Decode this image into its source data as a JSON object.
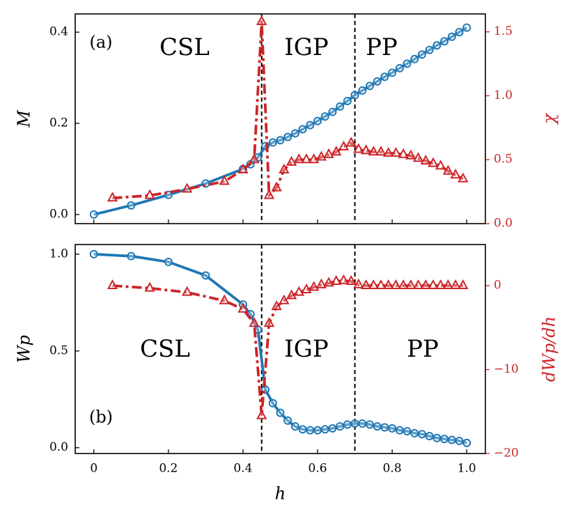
{
  "chart_data": [
    {
      "type": "line",
      "ylabel": "M",
      "y2label": "χ",
      "xlim": [
        -0.05,
        1.05
      ],
      "xticks": [
        0,
        0.2,
        0.4,
        0.6,
        0.8,
        1
      ],
      "ylim": [
        -0.02,
        0.44
      ],
      "yticks": [
        {
          "value": 0,
          "label": "0.0"
        },
        0.2,
        0.4
      ],
      "y2lim": [
        0,
        1.64
      ],
      "y2ticks": [
        {
          "value": 0,
          "label": "0.0"
        },
        0.5,
        {
          "value": 1,
          "label": "1.0"
        },
        1.5
      ],
      "y2color": "#cc2529",
      "vlines": [
        0.45,
        0.7
      ],
      "annotations": [
        "(a)",
        "CSL",
        "IGP",
        "PP"
      ],
      "series": [
        {
          "color": "#1f77b4",
          "marker": "circle",
          "linestyle": "solid",
          "x": [
            0,
            0.1,
            0.2,
            0.3,
            0.4,
            0.42,
            0.44,
            0.46,
            0.48,
            0.5,
            0.52,
            0.54,
            0.56,
            0.58,
            0.6,
            0.62,
            0.64,
            0.66,
            0.68,
            0.7,
            0.72,
            0.74,
            0.76,
            0.78,
            0.8,
            0.82,
            0.84,
            0.86,
            0.88,
            0.9,
            0.92,
            0.94,
            0.96,
            0.98,
            1.0
          ],
          "values": [
            0,
            0.02,
            0.043,
            0.068,
            0.1,
            0.11,
            0.125,
            0.15,
            0.158,
            0.163,
            0.17,
            0.178,
            0.187,
            0.196,
            0.205,
            0.215,
            0.225,
            0.237,
            0.249,
            0.262,
            0.272,
            0.282,
            0.292,
            0.302,
            0.311,
            0.321,
            0.331,
            0.341,
            0.351,
            0.361,
            0.371,
            0.38,
            0.39,
            0.4,
            0.41
          ]
        },
        {
          "color": "#cc2529",
          "marker": "triangle",
          "linestyle": "dashdot",
          "axis": "y2",
          "x": [
            0.05,
            0.15,
            0.25,
            0.35,
            0.4,
            0.43,
            0.45,
            0.47,
            0.49,
            0.51,
            0.53,
            0.55,
            0.57,
            0.59,
            0.61,
            0.63,
            0.65,
            0.67,
            0.69,
            0.71,
            0.73,
            0.75,
            0.77,
            0.79,
            0.81,
            0.83,
            0.85,
            0.87,
            0.89,
            0.91,
            0.93,
            0.95,
            0.97,
            0.99
          ],
          "values": [
            0.2,
            0.22,
            0.27,
            0.33,
            0.42,
            0.5,
            1.58,
            0.22,
            0.28,
            0.42,
            0.48,
            0.5,
            0.5,
            0.5,
            0.52,
            0.54,
            0.56,
            0.6,
            0.63,
            0.58,
            0.57,
            0.56,
            0.56,
            0.55,
            0.55,
            0.54,
            0.53,
            0.51,
            0.49,
            0.47,
            0.45,
            0.41,
            0.38,
            0.35
          ]
        }
      ]
    },
    {
      "type": "line",
      "xlabel": "h",
      "ylabel": "Wp",
      "y2label": "dWp/dh",
      "xlim": [
        -0.05,
        1.05
      ],
      "xticks": [
        0,
        0.2,
        0.4,
        0.6,
        0.8,
        {
          "value": 1,
          "label": "1.0"
        }
      ],
      "ylim": [
        -0.03,
        1.05
      ],
      "yticks": [
        {
          "value": 0,
          "label": "0.0"
        },
        0.5,
        {
          "value": 1,
          "label": "1.0"
        }
      ],
      "y2lim": [
        -20,
        4.9
      ],
      "y2ticks": [
        {
          "value": -20,
          "label": "−20"
        },
        {
          "value": -10,
          "label": "−10"
        },
        0
      ],
      "y2color": "#cc2529",
      "vlines": [
        0.45,
        0.7
      ],
      "annotations": [
        "(b)",
        "CSL",
        "IGP",
        "PP"
      ],
      "series": [
        {
          "color": "#1f77b4",
          "marker": "circle",
          "linestyle": "solid",
          "x": [
            0,
            0.1,
            0.2,
            0.3,
            0.4,
            0.42,
            0.44,
            0.46,
            0.48,
            0.5,
            0.52,
            0.54,
            0.56,
            0.58,
            0.6,
            0.62,
            0.64,
            0.66,
            0.68,
            0.7,
            0.72,
            0.74,
            0.76,
            0.78,
            0.8,
            0.82,
            0.84,
            0.86,
            0.88,
            0.9,
            0.92,
            0.94,
            0.96,
            0.98,
            1.0
          ],
          "values": [
            1,
            0.99,
            0.96,
            0.89,
            0.74,
            0.69,
            0.61,
            0.3,
            0.23,
            0.18,
            0.14,
            0.11,
            0.095,
            0.09,
            0.09,
            0.095,
            0.1,
            0.11,
            0.12,
            0.125,
            0.125,
            0.12,
            0.11,
            0.105,
            0.1,
            0.09,
            0.085,
            0.075,
            0.07,
            0.06,
            0.05,
            0.045,
            0.04,
            0.035,
            0.025
          ]
        },
        {
          "color": "#cc2529",
          "marker": "triangle",
          "linestyle": "dashdot",
          "axis": "y2",
          "x": [
            0.05,
            0.15,
            0.25,
            0.35,
            0.4,
            0.43,
            0.45,
            0.47,
            0.49,
            0.51,
            0.53,
            0.55,
            0.57,
            0.59,
            0.61,
            0.63,
            0.65,
            0.67,
            0.69,
            0.71,
            0.73,
            0.75,
            0.77,
            0.79,
            0.81,
            0.83,
            0.85,
            0.87,
            0.89,
            0.91,
            0.93,
            0.95,
            0.97,
            0.99
          ],
          "values": [
            0,
            -0.3,
            -0.8,
            -1.8,
            -2.8,
            -4.5,
            -15.5,
            -4.5,
            -2.5,
            -1.8,
            -1.2,
            -0.8,
            -0.5,
            -0.2,
            0.1,
            0.3,
            0.5,
            0.6,
            0.5,
            0.1,
            0,
            0,
            0,
            0,
            0,
            0,
            0,
            0,
            0,
            0,
            0,
            0,
            0,
            0
          ]
        }
      ]
    }
  ]
}
